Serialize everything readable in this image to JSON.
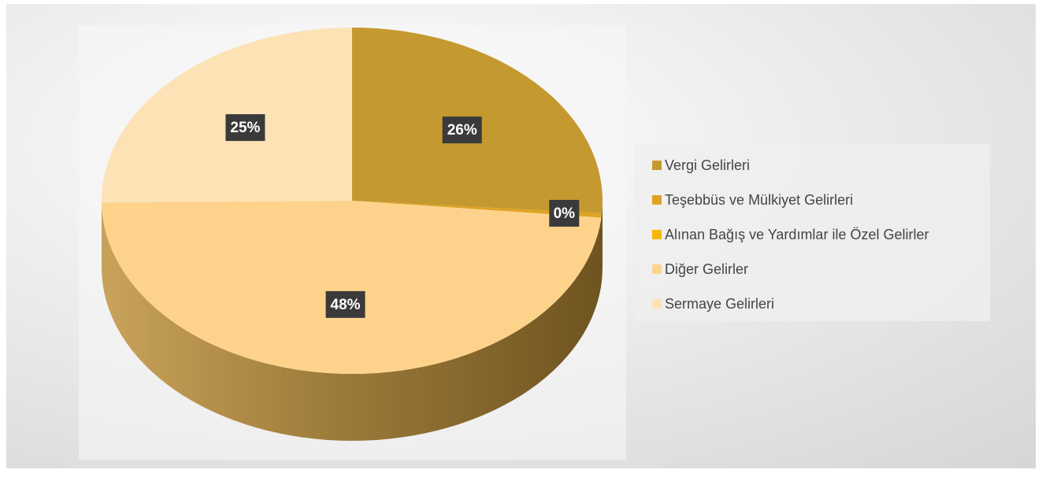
{
  "chart_data": {
    "type": "pie",
    "categories": [
      "Vergi Gelirleri",
      "Teşebbüs ve Mülkiyet Gelirleri",
      "Alınan Bağış ve Yardımlar ile Özel Gelirler",
      "Diğer Gelirler",
      "Sermaye Gelirleri"
    ],
    "values": [
      26,
      0.4,
      0,
      48,
      25
    ],
    "value_labels": [
      "26%",
      "0%",
      null,
      "48%",
      "25%"
    ],
    "colors": [
      "#c4992f",
      "#dea323",
      "#f5b800",
      "#fdd38c",
      "#fde2b6"
    ],
    "legend": "right"
  }
}
